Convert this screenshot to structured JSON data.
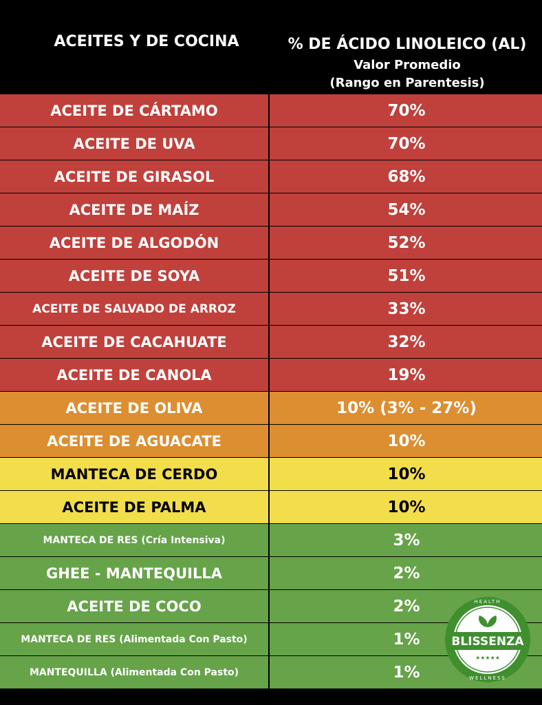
{
  "header": {
    "col1": "ACEITES Y DE COCINA",
    "col2_title": "% DE ÁCIDO LINOLEICO (AL)",
    "col2_sub1": "Valor Promedio",
    "col2_sub2": "(Rango en Parentesis)"
  },
  "rows": [
    {
      "name": "ACEITE DE CÁRTAMO",
      "value": "70%",
      "tier": "red"
    },
    {
      "name": "ACEITE DE UVA",
      "value": "70%",
      "tier": "red"
    },
    {
      "name": "ACEITE DE GIRASOL",
      "value": "68%",
      "tier": "red"
    },
    {
      "name": "ACEITE DE MAÍZ",
      "value": "54%",
      "tier": "red"
    },
    {
      "name": "ACEITE DE ALGODÓN",
      "value": "52%",
      "tier": "red"
    },
    {
      "name": "ACEITE DE SOYA",
      "value": "51%",
      "tier": "red"
    },
    {
      "name": "ACEITE DE SALVADO DE ARROZ",
      "value": "33%",
      "tier": "red"
    },
    {
      "name": "ACEITE DE CACAHUATE",
      "value": "32%",
      "tier": "red"
    },
    {
      "name": "ACEITE DE CANOLA",
      "value": "19%",
      "tier": "red"
    },
    {
      "name": "ACEITE DE OLIVA",
      "value": "10% (3% - 27%)",
      "tier": "orange"
    },
    {
      "name": "ACEITE DE AGUACATE",
      "value": "10%",
      "tier": "orange"
    },
    {
      "name": "MANTECA DE CERDO",
      "value": "10%",
      "tier": "yellow"
    },
    {
      "name": "ACEITE DE PALMA",
      "value": "10%",
      "tier": "yellow"
    },
    {
      "name": "MANTECA DE RES (Cría Intensiva)",
      "value": "3%",
      "tier": "green"
    },
    {
      "name": "GHEE - MANTEQUILLA",
      "value": "2%",
      "tier": "green"
    },
    {
      "name": "ACEITE DE COCO",
      "value": "2%",
      "tier": "green"
    },
    {
      "name": "MANTECA DE RES (Alimentada Con Pasto)",
      "value": "1%",
      "tier": "green"
    },
    {
      "name": "MANTEQUILLA (Alimentada Con Pasto)",
      "value": "1%",
      "tier": "green"
    }
  ],
  "logo": {
    "brand": "BLISSENZA",
    "top": "HEALTH",
    "bottom": "WELLNESS",
    "stars": "★★★★★"
  },
  "colors": {
    "red": "#c0403b",
    "orange": "#dc8e31",
    "yellow": "#f2dd4b",
    "green": "#66a349",
    "logo_green": "#3f8f2f"
  }
}
